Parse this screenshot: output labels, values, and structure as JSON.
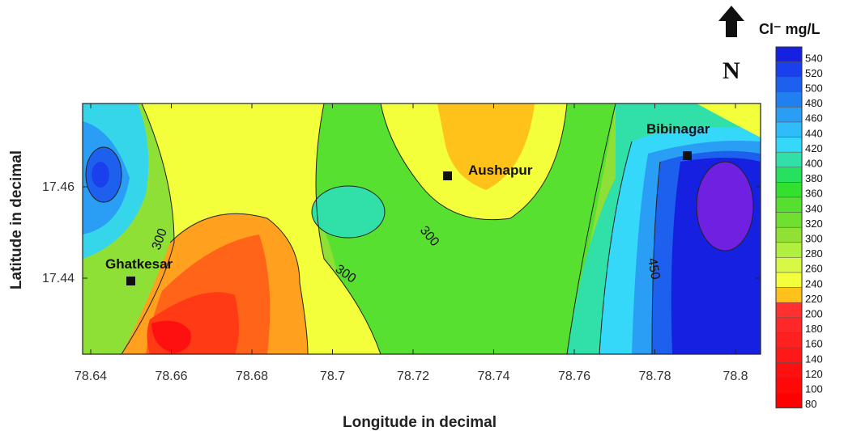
{
  "map": {
    "xlabel": "Longitude in decimal",
    "ylabel": "Latitude in decimal",
    "x_ticks": [
      "78.64",
      "78.66",
      "78.68",
      "78.7",
      "78.72",
      "78.74",
      "78.76",
      "78.78",
      "78.8"
    ],
    "y_ticks": [
      "17.46",
      "17.44"
    ],
    "places": [
      {
        "name": "Ghatkesar",
        "lon": 78.651,
        "lat": 17.439
      },
      {
        "name": "Aushapur",
        "lon": 78.729,
        "lat": 17.462
      },
      {
        "name": "Bibinagar",
        "lon": 78.788,
        "lat": 17.467
      }
    ],
    "contour_labels": [
      "300",
      "300",
      "300",
      "450"
    ],
    "north_arrow": {
      "letter": "N",
      "icon": "north-arrow-icon"
    }
  },
  "legend": {
    "title": "Cl⁻ mg/L",
    "levels": [
      "540",
      "520",
      "500",
      "480",
      "460",
      "440",
      "420",
      "400",
      "380",
      "360",
      "340",
      "320",
      "300",
      "280",
      "260",
      "240",
      "220",
      "200",
      "180",
      "160",
      "140",
      "120",
      "100",
      "80"
    ],
    "colors": [
      "#1520e0",
      "#1a40ee",
      "#1d60ee",
      "#2080f0",
      "#2a9ef5",
      "#30bcf8",
      "#35d8f8",
      "#30e0a8",
      "#28e060",
      "#33e030",
      "#55e030",
      "#70e030",
      "#90e035",
      "#b0ee40",
      "#d8f848",
      "#f2ff3a",
      "#ffc21a",
      "#ff3030",
      "#ff2828",
      "#ff2020",
      "#ff1818",
      "#ff1010",
      "#ff0808",
      "#ff0000"
    ]
  }
}
